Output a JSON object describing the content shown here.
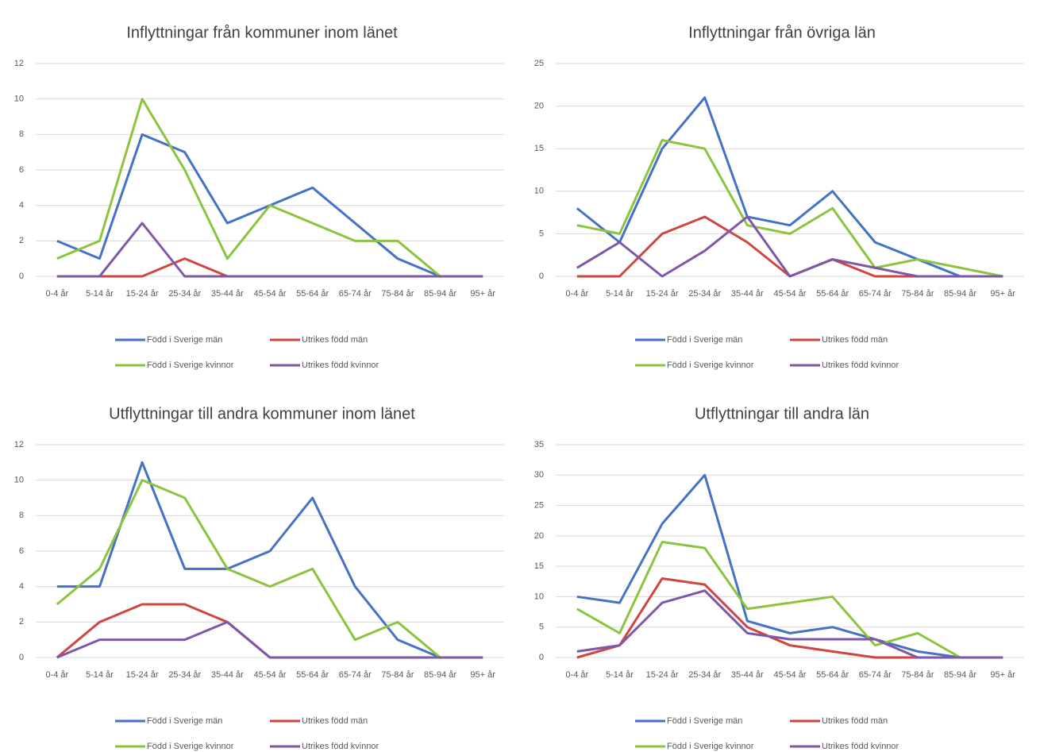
{
  "chart_data": [
    {
      "type": "line",
      "title": "Inflyttningar från kommuner inom länet",
      "categories": [
        "0-4 år",
        "5-14 år",
        "15-24 år",
        "25-34 år",
        "35-44 år",
        "45-54 år",
        "55-64 år",
        "65-74 år",
        "75-84 år",
        "85-94 år",
        "95+ år"
      ],
      "ylim": [
        0,
        12
      ],
      "yticks": [
        0,
        2,
        4,
        6,
        8,
        10,
        12
      ],
      "grid": true,
      "series": [
        {
          "name": "Född i Sverige män",
          "color": "#4472c4",
          "values": [
            2,
            1,
            8,
            7,
            3,
            4,
            5,
            3,
            1,
            0,
            0
          ]
        },
        {
          "name": "Utrikes född män",
          "color": "#d0463f",
          "values": [
            0,
            0,
            0,
            1,
            0,
            0,
            0,
            0,
            0,
            0,
            0
          ]
        },
        {
          "name": "Född i Sverige kvinnor",
          "color": "#8cc43f",
          "values": [
            1,
            2,
            10,
            6,
            1,
            4,
            3,
            2,
            2,
            0,
            0
          ]
        },
        {
          "name": "Utrikes född kvinnor",
          "color": "#7e57a8",
          "values": [
            0,
            0,
            3,
            0,
            0,
            0,
            0,
            0,
            0,
            0,
            0
          ]
        }
      ]
    },
    {
      "type": "line",
      "title": "Inflyttningar från övriga län",
      "categories": [
        "0-4 år",
        "5-14 år",
        "15-24 år",
        "25-34 år",
        "35-44 år",
        "45-54 år",
        "55-64 år",
        "65-74 år",
        "75-84 år",
        "85-94 år",
        "95+ år"
      ],
      "ylim": [
        0,
        25
      ],
      "yticks": [
        0,
        5,
        10,
        15,
        20,
        25
      ],
      "grid": true,
      "series": [
        {
          "name": "Född i Sverige män",
          "color": "#4472c4",
          "values": [
            8,
            4,
            15,
            21,
            7,
            6,
            10,
            4,
            2,
            0,
            0
          ]
        },
        {
          "name": "Utrikes född män",
          "color": "#d0463f",
          "values": [
            0,
            0,
            5,
            7,
            4,
            0,
            2,
            0,
            0,
            0,
            0
          ]
        },
        {
          "name": "Född i Sverige kvinnor",
          "color": "#8cc43f",
          "values": [
            6,
            5,
            16,
            15,
            6,
            5,
            8,
            1,
            2,
            1,
            0
          ]
        },
        {
          "name": "Utrikes född kvinnor",
          "color": "#7e57a8",
          "values": [
            1,
            4,
            0,
            3,
            7,
            0,
            2,
            1,
            0,
            0,
            0
          ]
        }
      ]
    },
    {
      "type": "line",
      "title": "Utflyttningar till andra kommuner inom länet",
      "categories": [
        "0-4 år",
        "5-14 år",
        "15-24 år",
        "25-34 år",
        "35-44 år",
        "45-54 år",
        "55-64 år",
        "65-74 år",
        "75-84 år",
        "85-94 år",
        "95+ år"
      ],
      "ylim": [
        0,
        12
      ],
      "yticks": [
        0,
        2,
        4,
        6,
        8,
        10,
        12
      ],
      "grid": true,
      "series": [
        {
          "name": "Född i Sverige män",
          "color": "#4472c4",
          "values": [
            4,
            4,
            11,
            5,
            5,
            6,
            9,
            4,
            1,
            0,
            0
          ]
        },
        {
          "name": "Utrikes född män",
          "color": "#d0463f",
          "values": [
            0,
            2,
            3,
            3,
            2,
            0,
            0,
            0,
            0,
            0,
            0
          ]
        },
        {
          "name": "Född i Sverige kvinnor",
          "color": "#8cc43f",
          "values": [
            3,
            5,
            10,
            9,
            5,
            4,
            5,
            1,
            2,
            0,
            0
          ]
        },
        {
          "name": "Utrikes född kvinnor",
          "color": "#7e57a8",
          "values": [
            0,
            1,
            1,
            1,
            2,
            0,
            0,
            0,
            0,
            0,
            0
          ]
        }
      ]
    },
    {
      "type": "line",
      "title": "Utflyttningar till andra län",
      "categories": [
        "0-4 år",
        "5-14 år",
        "15-24 år",
        "25-34 år",
        "35-44 år",
        "45-54 år",
        "55-64 år",
        "65-74 år",
        "75-84 år",
        "85-94 år",
        "95+ år"
      ],
      "ylim": [
        0,
        35
      ],
      "yticks": [
        0,
        5,
        10,
        15,
        20,
        25,
        30,
        35
      ],
      "grid": true,
      "series": [
        {
          "name": "Född i Sverige män",
          "color": "#4472c4",
          "values": [
            10,
            9,
            22,
            30,
            6,
            4,
            5,
            3,
            1,
            0,
            0
          ]
        },
        {
          "name": "Utrikes född män",
          "color": "#d0463f",
          "values": [
            0,
            2,
            13,
            12,
            5,
            2,
            1,
            0,
            0,
            0,
            0
          ]
        },
        {
          "name": "Född i Sverige kvinnor",
          "color": "#8cc43f",
          "values": [
            8,
            4,
            19,
            18,
            8,
            9,
            10,
            2,
            4,
            0,
            0
          ]
        },
        {
          "name": "Utrikes född kvinnor",
          "color": "#7e57a8",
          "values": [
            1,
            2,
            9,
            11,
            4,
            3,
            3,
            3,
            0,
            0,
            0
          ]
        }
      ]
    }
  ]
}
